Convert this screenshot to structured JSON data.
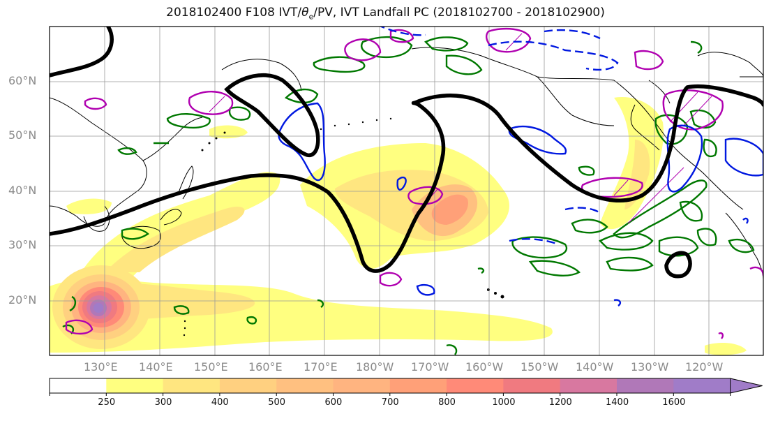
{
  "title_main": "2018102400 F108 IVT/",
  "title_theta": "θ",
  "title_sub": "e",
  "title_rest": "/PV, IVT Landfall PC (2018102700 - 2018102900)",
  "map": {
    "lat_labels": [
      "60°N",
      "50°N",
      "40°N",
      "30°N",
      "20°N"
    ],
    "lon_labels": [
      "130°E",
      "140°E",
      "150°E",
      "160°E",
      "170°E",
      "180°W",
      "170°W",
      "160°W",
      "150°W",
      "140°W",
      "130°W",
      "120°W"
    ],
    "extent": {
      "lon_min": 120,
      "lon_max": 250,
      "lat_min": 10,
      "lat_max": 70
    },
    "grid": true
  },
  "colorbar": {
    "levels": [
      "250",
      "300",
      "400",
      "500",
      "600",
      "700",
      "800",
      "1000",
      "1200",
      "1400",
      "1600"
    ],
    "colors": [
      "#ffffff",
      "#ffff80",
      "#ffe680",
      "#ffd080",
      "#ffc080",
      "#ffb480",
      "#ffa078",
      "#ff8a78",
      "#f07a80",
      "#d878a0",
      "#b078b8",
      "#a07cc8"
    ],
    "extend": "max"
  },
  "legend_colors": {
    "jet_contour": "#000000",
    "pv_high": "#b000b0",
    "pv_low": "#0018e0",
    "theta_e": "#007800",
    "coast": "#000000"
  }
}
